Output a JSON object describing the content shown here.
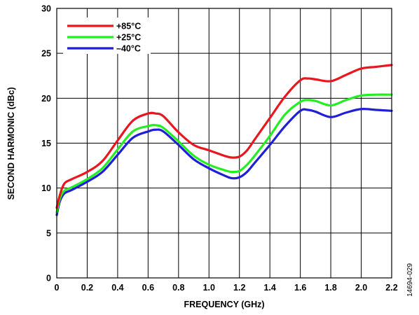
{
  "chart_data": {
    "type": "line",
    "xlabel": "FREQUENCY (GHz)",
    "ylabel": "SECOND HARMONIC (dBc)",
    "xlim": [
      0,
      2.2
    ],
    "ylim": [
      0,
      30
    ],
    "xticks": [
      0,
      0.2,
      0.4,
      0.6,
      0.8,
      1.0,
      1.2,
      1.4,
      1.6,
      1.8,
      2.0,
      2.2
    ],
    "xtick_labels": [
      "0",
      "0.2",
      "0.4",
      "0.6",
      "0.8",
      "1.0",
      "1.2",
      "1.4",
      "1.6",
      "1.8",
      "2.0",
      "2.2"
    ],
    "yticks": [
      0,
      5,
      10,
      15,
      20,
      25,
      30
    ],
    "ytick_labels": [
      "0",
      "5",
      "10",
      "15",
      "20",
      "25",
      "30"
    ],
    "grid": true,
    "legend_position": "top-left",
    "figure_id": "14694-029",
    "series": [
      {
        "name": "+85°C",
        "color": "#e8171f",
        "x": [
          0.0,
          0.02,
          0.05,
          0.1,
          0.2,
          0.3,
          0.4,
          0.5,
          0.6,
          0.65,
          0.7,
          0.8,
          0.9,
          1.0,
          1.1,
          1.15,
          1.2,
          1.25,
          1.3,
          1.4,
          1.5,
          1.6,
          1.65,
          1.7,
          1.8,
          1.9,
          2.0,
          2.1,
          2.2
        ],
        "y": [
          7.8,
          9.2,
          10.5,
          11.0,
          11.8,
          13.0,
          15.3,
          17.5,
          18.3,
          18.3,
          18.0,
          16.2,
          14.8,
          14.2,
          13.6,
          13.4,
          13.5,
          14.2,
          15.4,
          17.8,
          20.2,
          22.0,
          22.2,
          22.1,
          21.9,
          22.6,
          23.3,
          23.5,
          23.7
        ]
      },
      {
        "name": "+25°C",
        "color": "#22ee22",
        "x": [
          0.0,
          0.02,
          0.05,
          0.1,
          0.2,
          0.3,
          0.4,
          0.5,
          0.6,
          0.65,
          0.7,
          0.8,
          0.9,
          1.0,
          1.1,
          1.15,
          1.2,
          1.25,
          1.3,
          1.4,
          1.5,
          1.6,
          1.65,
          1.7,
          1.8,
          1.9,
          2.0,
          2.1,
          2.2
        ],
        "y": [
          7.3,
          8.8,
          9.7,
          10.1,
          11.0,
          12.2,
          14.3,
          16.3,
          16.9,
          17.0,
          16.7,
          15.2,
          13.6,
          12.6,
          12.0,
          11.8,
          11.9,
          12.6,
          13.6,
          15.8,
          18.2,
          19.6,
          19.8,
          19.7,
          19.2,
          19.8,
          20.3,
          20.4,
          20.4
        ]
      },
      {
        "name": "–40°C",
        "color": "#1f1fd6",
        "x": [
          0.0,
          0.02,
          0.05,
          0.1,
          0.2,
          0.3,
          0.4,
          0.5,
          0.6,
          0.65,
          0.7,
          0.8,
          0.9,
          1.0,
          1.1,
          1.15,
          1.2,
          1.25,
          1.3,
          1.4,
          1.5,
          1.6,
          1.65,
          1.7,
          1.8,
          1.9,
          2.0,
          2.1,
          2.2
        ],
        "y": [
          7.0,
          8.5,
          9.4,
          9.8,
          10.7,
          11.8,
          13.7,
          15.6,
          16.3,
          16.5,
          16.3,
          14.8,
          13.2,
          12.2,
          11.4,
          11.1,
          11.2,
          11.8,
          12.8,
          14.8,
          16.9,
          18.6,
          18.7,
          18.5,
          17.9,
          18.4,
          18.8,
          18.7,
          18.6
        ]
      }
    ]
  }
}
